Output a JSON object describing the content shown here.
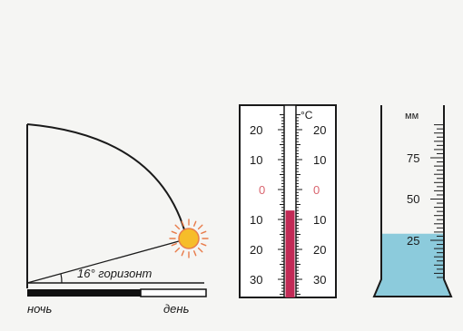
{
  "sun_diagram": {
    "angle_label": "16° горизонт",
    "bar_labels": {
      "night": "ночь",
      "day": "день"
    }
  },
  "thermometer": {
    "unit": "°C",
    "scale_labels": [
      "20",
      "10",
      "0",
      "10",
      "20",
      "30"
    ],
    "zero_label_color": "#d9646e",
    "liquid_color": "#c22a56",
    "reading_celsius": -7
  },
  "rain_gauge": {
    "unit": "мм",
    "scale_labels": [
      "75",
      "50",
      "25"
    ],
    "water_color": "#8ccbdc",
    "reading_mm": 29
  }
}
